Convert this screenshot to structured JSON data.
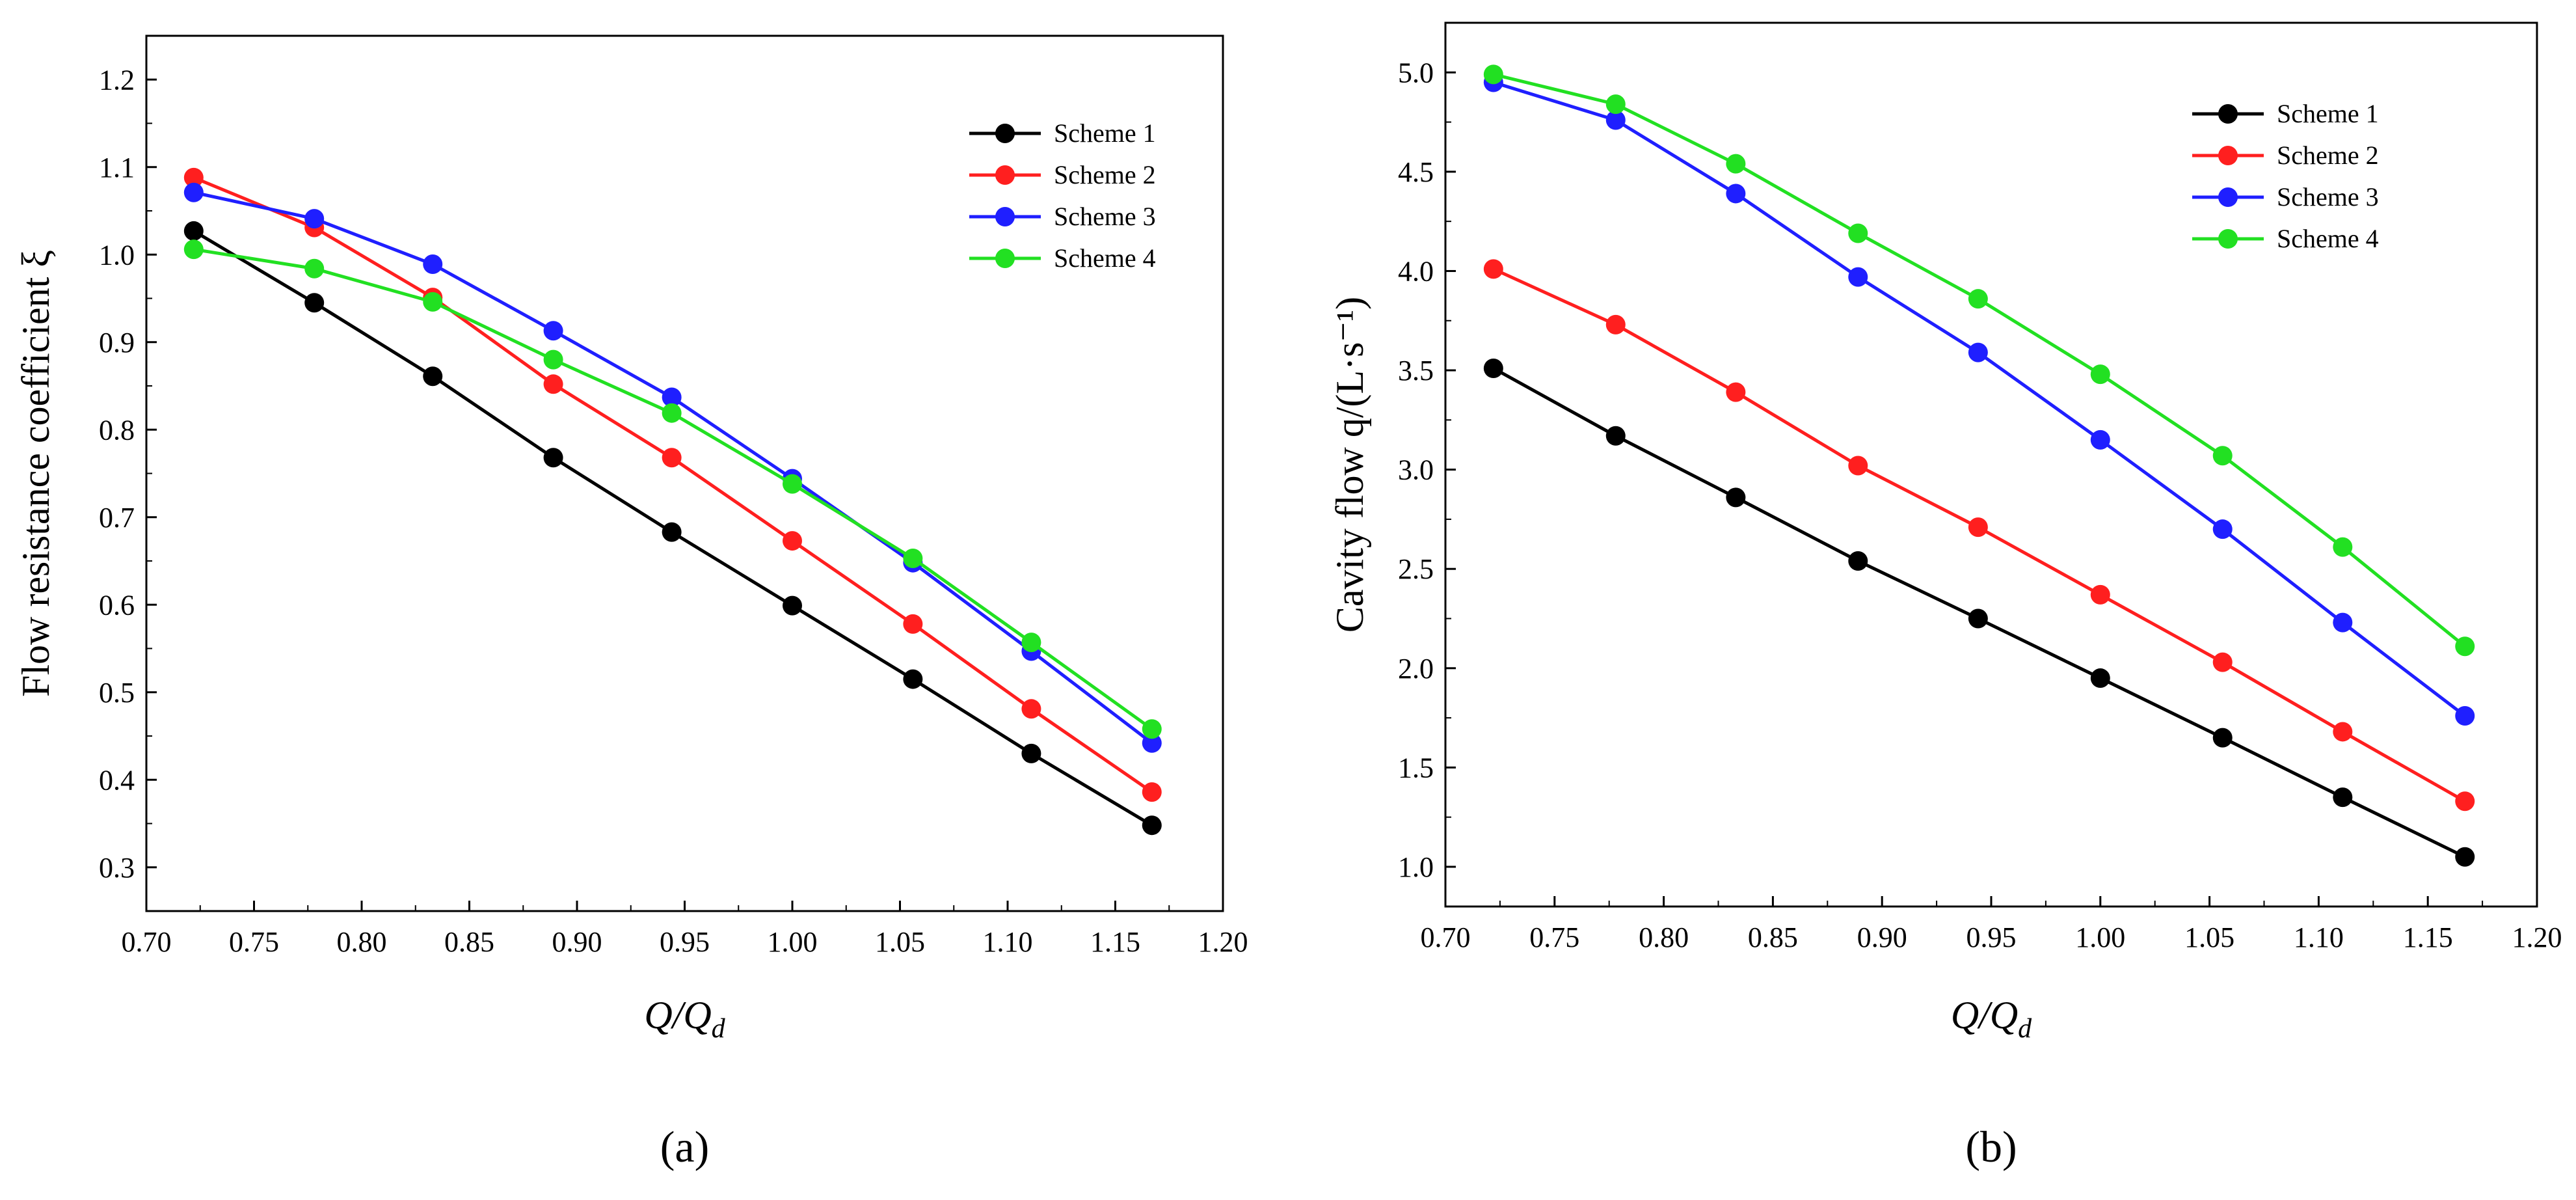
{
  "chart_data": [
    {
      "id": "a",
      "type": "line",
      "panel_label": "(a)",
      "xlabel": "Q/Q_d",
      "ylabel": "Flow resistance coefficient ξ",
      "xlim": [
        0.7,
        1.2
      ],
      "ylim": [
        0.25,
        1.25
      ],
      "xticks": [
        "0.70",
        "0.75",
        "0.80",
        "0.85",
        "0.90",
        "0.95",
        "1.00",
        "1.05",
        "1.10",
        "1.15",
        "1.20"
      ],
      "yticks": [
        "0.3",
        "0.4",
        "0.5",
        "0.6",
        "0.7",
        "0.8",
        "0.9",
        "1.0",
        "1.1",
        "1.2"
      ],
      "x": [
        0.722,
        0.778,
        0.833,
        0.889,
        0.944,
        1.0,
        1.056,
        1.111,
        1.167
      ],
      "series": [
        {
          "name": "Scheme 1",
          "color": "#000000",
          "values": [
            1.027,
            0.945,
            0.861,
            0.768,
            0.683,
            0.599,
            0.515,
            0.43,
            0.348
          ]
        },
        {
          "name": "Scheme 2",
          "color": "#ff1f1f",
          "values": [
            1.088,
            1.031,
            0.951,
            0.852,
            0.768,
            0.673,
            0.578,
            0.481,
            0.386
          ]
        },
        {
          "name": "Scheme 3",
          "color": "#1f1fff",
          "values": [
            1.071,
            1.041,
            0.989,
            0.913,
            0.837,
            0.744,
            0.648,
            0.547,
            0.442
          ]
        },
        {
          "name": "Scheme 4",
          "color": "#22e022",
          "values": [
            1.006,
            0.984,
            0.946,
            0.88,
            0.819,
            0.738,
            0.653,
            0.557,
            0.458
          ]
        }
      ],
      "legend_position": "top-right"
    },
    {
      "id": "b",
      "type": "line",
      "panel_label": "(b)",
      "xlabel": "Q/Q_d",
      "ylabel": "Cavity flow q/(L·s⁻¹)",
      "xlim": [
        0.7,
        1.2
      ],
      "ylim": [
        0.8,
        5.25
      ],
      "xticks": [
        "0.70",
        "0.75",
        "0.80",
        "0.85",
        "0.90",
        "0.95",
        "1.00",
        "1.05",
        "1.10",
        "1.15",
        "1.20"
      ],
      "yticks": [
        "1.0",
        "1.5",
        "2.0",
        "2.5",
        "3.0",
        "3.5",
        "4.0",
        "4.5",
        "5.0"
      ],
      "x": [
        0.722,
        0.778,
        0.833,
        0.889,
        0.944,
        1.0,
        1.056,
        1.111,
        1.167
      ],
      "series": [
        {
          "name": "Scheme 1",
          "color": "#000000",
          "values": [
            3.51,
            3.17,
            2.86,
            2.54,
            2.25,
            1.95,
            1.65,
            1.35,
            1.05
          ]
        },
        {
          "name": "Scheme 2",
          "color": "#ff1f1f",
          "values": [
            4.01,
            3.73,
            3.39,
            3.02,
            2.71,
            2.37,
            2.03,
            1.68,
            1.33
          ]
        },
        {
          "name": "Scheme 3",
          "color": "#1f1fff",
          "values": [
            4.95,
            4.76,
            4.39,
            3.97,
            3.59,
            3.15,
            2.7,
            2.23,
            1.76
          ]
        },
        {
          "name": "Scheme 4",
          "color": "#22e022",
          "values": [
            4.99,
            4.84,
            4.54,
            4.19,
            3.86,
            3.48,
            3.07,
            2.61,
            2.11
          ]
        }
      ],
      "legend_position": "top-right"
    }
  ]
}
